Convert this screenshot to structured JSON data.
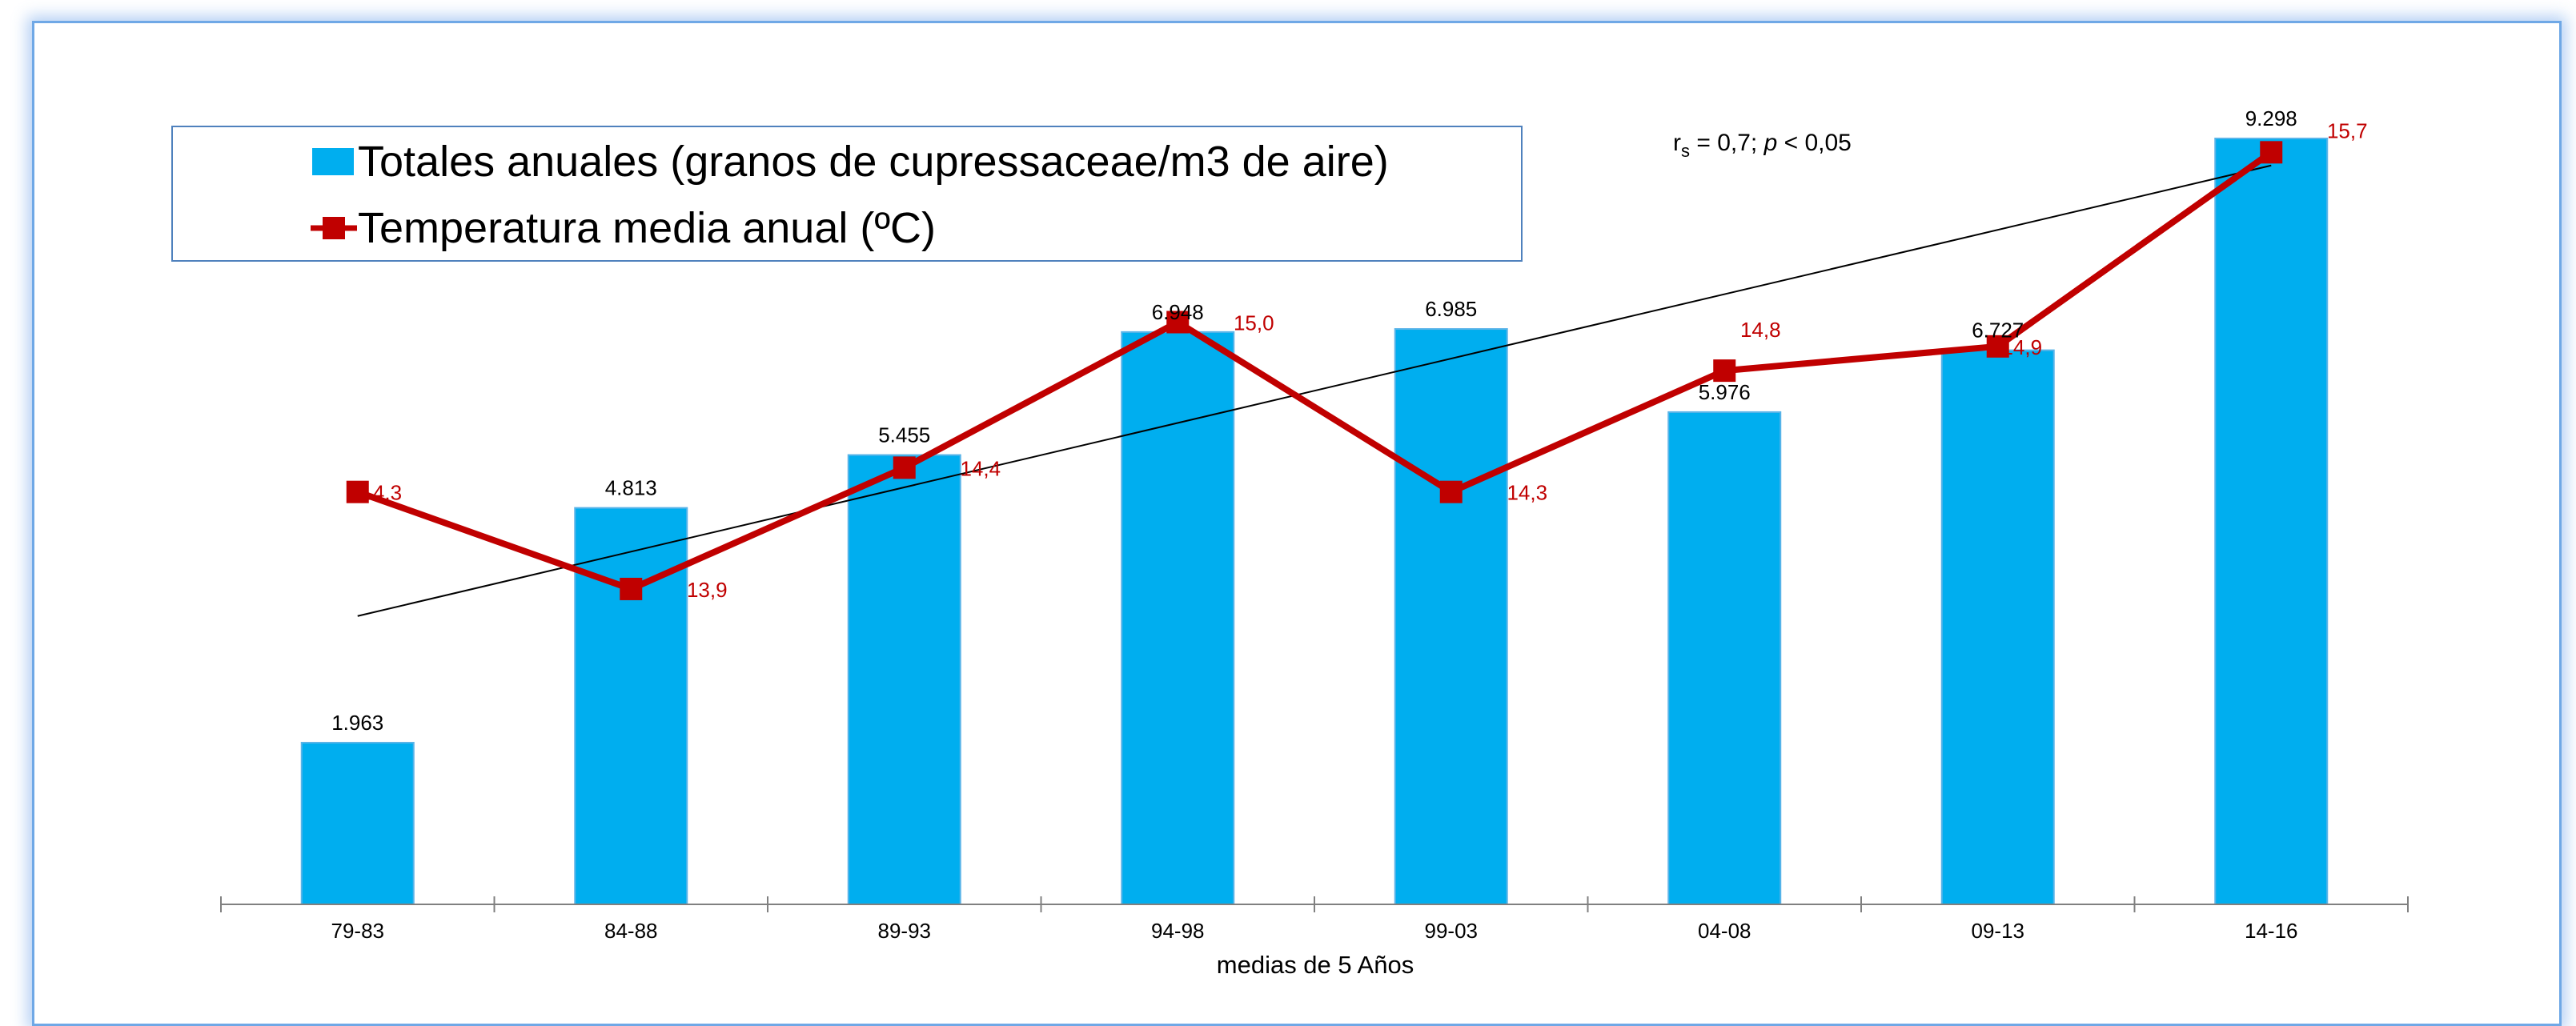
{
  "chart_data": {
    "type": "bar",
    "categories": [
      "79-83",
      "84-88",
      "89-93",
      "94-98",
      "99-03",
      "04-08",
      "09-13",
      "14-16"
    ],
    "xlabel": "medias de 5 Años",
    "ylabel": "",
    "series": [
      {
        "name": "Totales anuales (granos de cupressaceae/m3 de aire)",
        "type": "bar",
        "values": [
          1963,
          4813,
          5455,
          6948,
          6985,
          5976,
          6727,
          9298
        ],
        "labels": [
          "1.963",
          "4.813",
          "5.455",
          "6.948",
          "6.985",
          "5.976",
          "6.727",
          "9.298"
        ],
        "color": "#00aeef",
        "ylim": [
          0,
          10000
        ]
      },
      {
        "name": "Temperatura media anual (ºC)",
        "type": "line",
        "values": [
          14.3,
          13.9,
          14.4,
          15.0,
          14.3,
          14.8,
          14.9,
          15.7
        ],
        "labels": [
          "14,3",
          "13,9",
          "14,4",
          "15,0",
          "14,3",
          "14,8",
          "14,9",
          "15,7"
        ],
        "color": "#c00000",
        "ylim": [
          12.6,
          15.8
        ]
      }
    ],
    "trendline": {
      "series": "Totales anuales (granos de cupressaceae/m3 de aire)",
      "kind": "linear",
      "start_value": 3500,
      "end_value": 8970,
      "color": "#000000"
    },
    "annotation": {
      "prefix": "r",
      "subscript": "s",
      "middle": " = 0,7; ",
      "p_letter": "p",
      "suffix": " < 0,05"
    },
    "legend": {
      "placement": "top-left",
      "entries": [
        "Totales anuales (granos de cupressaceae/m3 de aire)",
        "Temperatura media anual (ºC)"
      ]
    },
    "grid": false
  }
}
